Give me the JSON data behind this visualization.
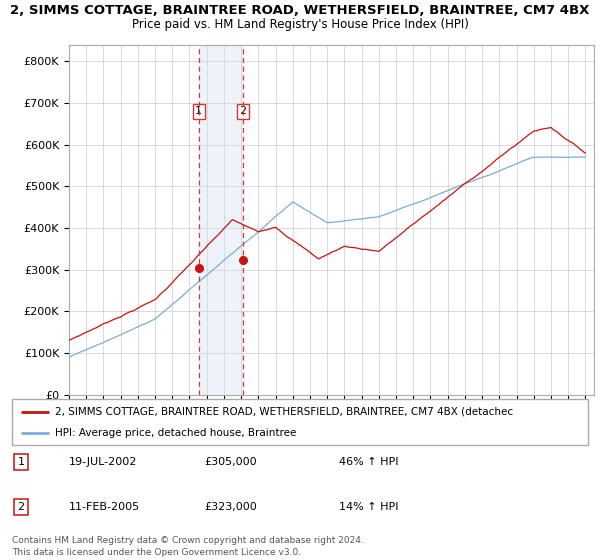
{
  "title1": "2, SIMMS COTTAGE, BRAINTREE ROAD, WETHERSFIELD, BRAINTREE, CM7 4BX",
  "title2": "Price paid vs. HM Land Registry's House Price Index (HPI)",
  "ytick_values": [
    0,
    100000,
    200000,
    300000,
    400000,
    500000,
    600000,
    700000,
    800000
  ],
  "ylim": [
    0,
    840000
  ],
  "xlim_min": 1995,
  "xlim_max": 2025.5,
  "sale1_x": 2002.54,
  "sale1_y": 305000,
  "sale2_x": 2005.11,
  "sale2_y": 323000,
  "hpi_color": "#7aaed6",
  "price_color": "#cc1111",
  "vline_color": "#dd3333",
  "shade_color": "#d0dff0",
  "legend_text1": "2, SIMMS COTTAGE, BRAINTREE ROAD, WETHERSFIELD, BRAINTREE, CM7 4BX (detachec",
  "legend_text2": "HPI: Average price, detached house, Braintree",
  "table_rows": [
    {
      "label": "1",
      "date": "19-JUL-2002",
      "price": "£305,000",
      "change": "46% ↑ HPI"
    },
    {
      "label": "2",
      "date": "11-FEB-2005",
      "price": "£323,000",
      "change": "14% ↑ HPI"
    }
  ],
  "footnote1": "Contains HM Land Registry data © Crown copyright and database right 2024.",
  "footnote2": "This data is licensed under the Open Government Licence v3.0."
}
